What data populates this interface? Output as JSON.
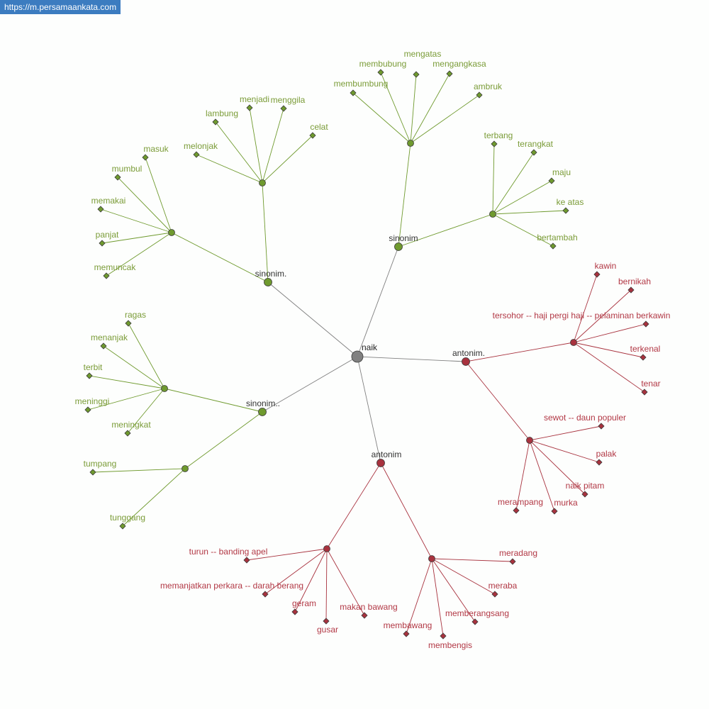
{
  "banner": {
    "url": "https://m.persamaankata.com"
  },
  "colors": {
    "synonym": "#6f9a2e",
    "antonym": "#a8323e",
    "root": "#808080",
    "synonym_text": "#7b9c38",
    "antonym_text": "#b23845"
  },
  "graph": {
    "root": "naik",
    "hubs": [
      {
        "label": "sinonim",
        "type": "synonym",
        "groups": [
          [
            "membubung",
            "mengatas",
            "mengangkasa",
            "membumbung",
            "ambruk"
          ],
          [
            "terbang",
            "terangkat",
            "maju",
            "ke atas",
            "bertambah"
          ]
        ]
      },
      {
        "label": "sinonim.",
        "type": "synonym",
        "groups": [
          [
            "lambung",
            "menjadi",
            "menggila",
            "celat",
            "melonjak"
          ],
          [
            "masuk",
            "mumbul",
            "memakai",
            "panjat",
            "memuncak"
          ]
        ]
      },
      {
        "label": "sinonim..",
        "type": "synonym",
        "groups": [
          [
            "ragas",
            "menanjak",
            "terbit",
            "meninggi",
            "meningkat"
          ],
          [
            "tumpang",
            "tunggang"
          ]
        ]
      },
      {
        "label": "antonim.",
        "type": "antonym",
        "groups": [
          [
            "kawin",
            "bernikah",
            "tersohor -- haji pergi haji -- pelaminan berkawin",
            "terkenal",
            "tenar"
          ],
          [
            "sewot -- daun populer",
            "palak",
            "naik pitam",
            "murka",
            "merampang"
          ]
        ]
      },
      {
        "label": "antonim",
        "type": "antonym",
        "groups": [
          [
            "turun -- banding apel",
            "memanjatkan perkara -- darah berang",
            "geram",
            "gusar",
            "makan bawang"
          ],
          [
            "meradang",
            "meraba",
            "memberangsang",
            "membengis",
            "membawang"
          ]
        ]
      }
    ]
  }
}
